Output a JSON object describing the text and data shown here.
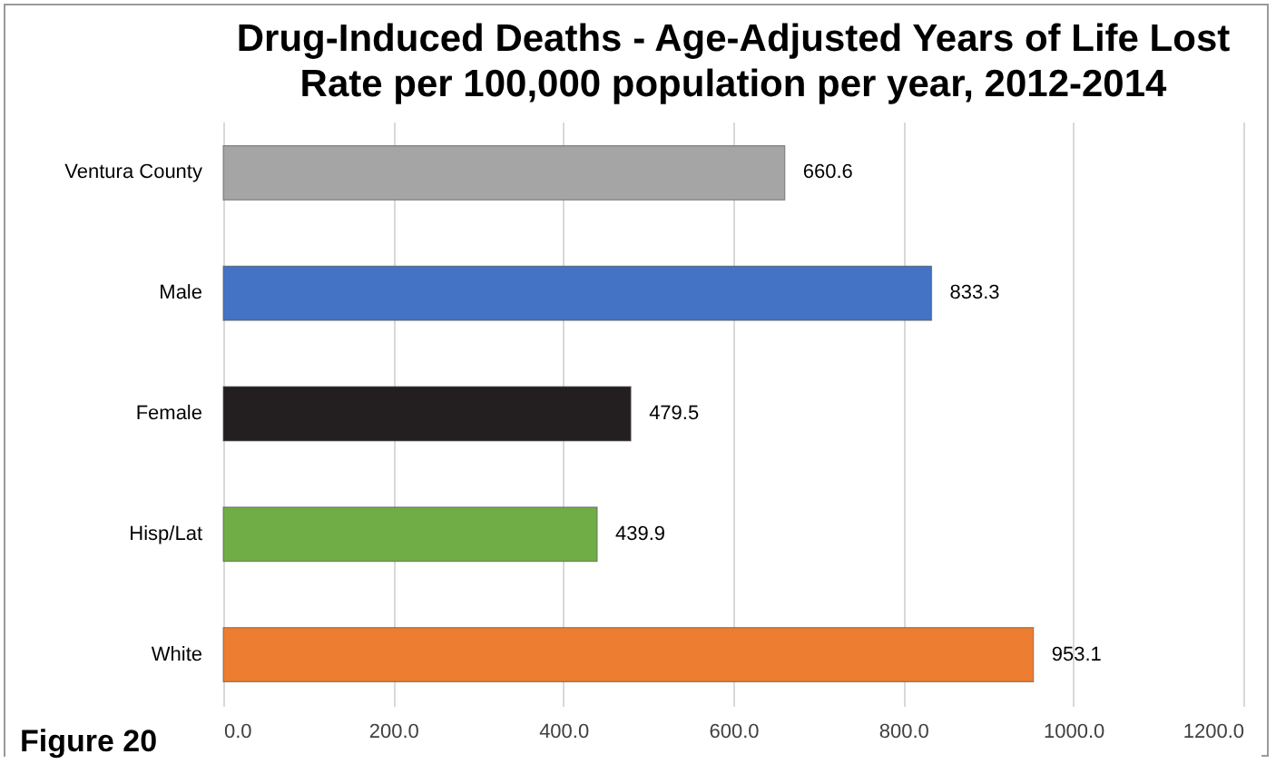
{
  "chart_data": {
    "type": "bar",
    "orientation": "horizontal",
    "title": "Drug-Induced Deaths - Age-Adjusted Years of Life Lost\nRate per 100,000 population per year, 2012-2014",
    "categories": [
      "Ventura County",
      "Male",
      "Female",
      "Hisp/Lat",
      "White"
    ],
    "values": [
      660.6,
      833.3,
      479.5,
      439.9,
      953.1
    ],
    "colors": [
      "#a5a5a5",
      "#4472c4",
      "#231f20",
      "#70ad47",
      "#ed7d31"
    ],
    "xlim": [
      0,
      1200
    ],
    "xticks": [
      {
        "value": 0,
        "label": "0.0"
      },
      {
        "value": 200,
        "label": "200.0"
      },
      {
        "value": 400,
        "label": "400.0"
      },
      {
        "value": 600,
        "label": "600.0"
      },
      {
        "value": 800,
        "label": "800.0"
      },
      {
        "value": 1000,
        "label": "1000.0"
      },
      {
        "value": 1200,
        "label": "1200.0"
      }
    ],
    "grid": "x",
    "data_labels": true,
    "legend": false,
    "annotations": [
      "Figure 20"
    ]
  }
}
